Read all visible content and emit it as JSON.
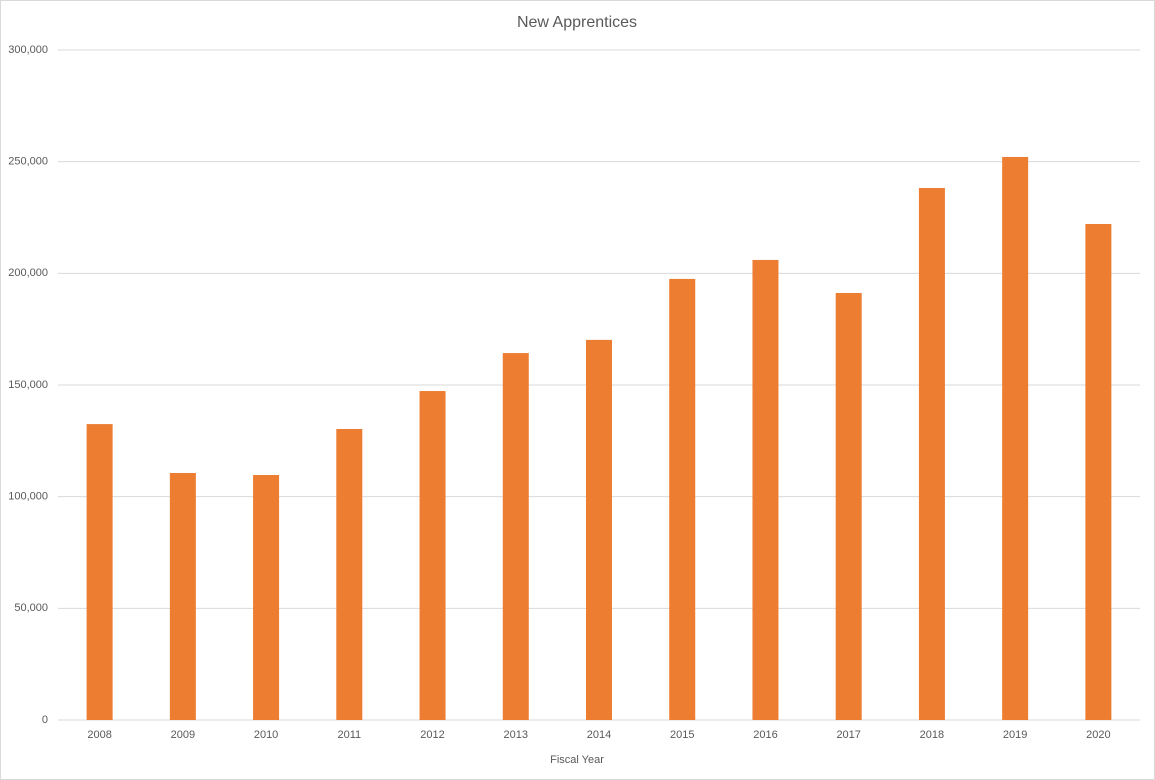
{
  "chart_data": {
    "type": "bar",
    "title": "New Apprentices",
    "x_label": "Fiscal Year",
    "categories": [
      "2008",
      "2009",
      "2010",
      "2011",
      "2012",
      "2013",
      "2014",
      "2015",
      "2016",
      "2017",
      "2018",
      "2019",
      "2020"
    ],
    "values": [
      132500,
      110600,
      109700,
      130300,
      147300,
      164300,
      170200,
      197500,
      206000,
      191200,
      238200,
      252100,
      222100
    ],
    "color": "#ed7d31",
    "ylim": [
      0,
      300000
    ],
    "yticks": [
      0,
      {
        "value": 50000,
        "label": "50,000"
      },
      {
        "value": 100000,
        "label": "100,000"
      },
      {
        "value": 150000,
        "label": "150,000"
      },
      {
        "value": 200000,
        "label": "200,000"
      },
      {
        "value": 250000,
        "label": "250,000"
      },
      {
        "value": 300000,
        "label": "300,000"
      }
    ],
    "grid": true
  }
}
